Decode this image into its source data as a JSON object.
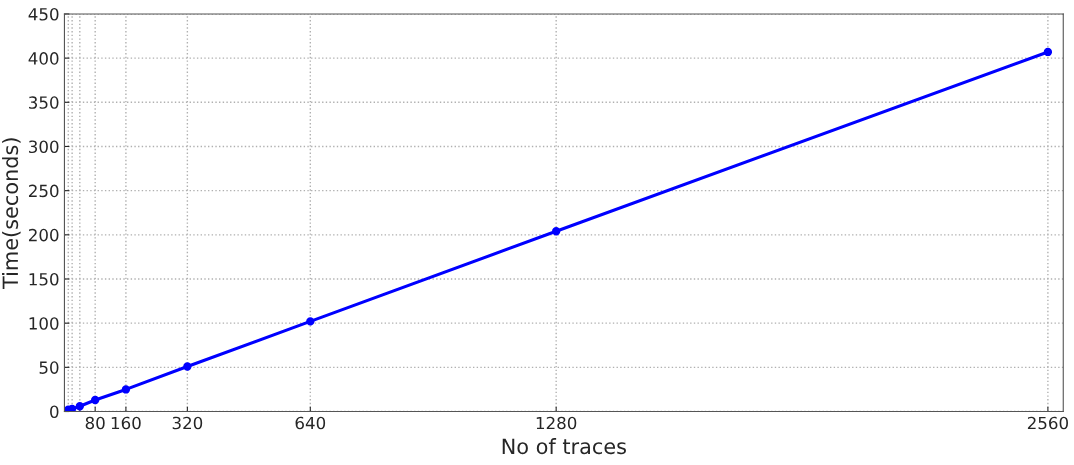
{
  "chart_data": {
    "type": "line",
    "xlabel": "No of traces",
    "ylabel": "Time(seconds)",
    "x": [
      10,
      20,
      40,
      80,
      160,
      320,
      640,
      1280,
      2560
    ],
    "series": [
      {
        "color": "#0000ff",
        "values": [
          2,
          3,
          6,
          13,
          25,
          51,
          102,
          204,
          407
        ]
      }
    ],
    "xlim": [
      0,
      2600
    ],
    "xticks": [
      {
        "value": 10,
        "label": null
      },
      {
        "value": 20,
        "label": null
      },
      {
        "value": 40,
        "label": null
      },
      80,
      160,
      320,
      640,
      1280,
      2560
    ],
    "ylim": [
      0,
      450
    ],
    "yticks": [
      0,
      50,
      100,
      150,
      200,
      250,
      300,
      350,
      400,
      450
    ],
    "grid": true,
    "marker": "circle",
    "line_style": "solid"
  }
}
